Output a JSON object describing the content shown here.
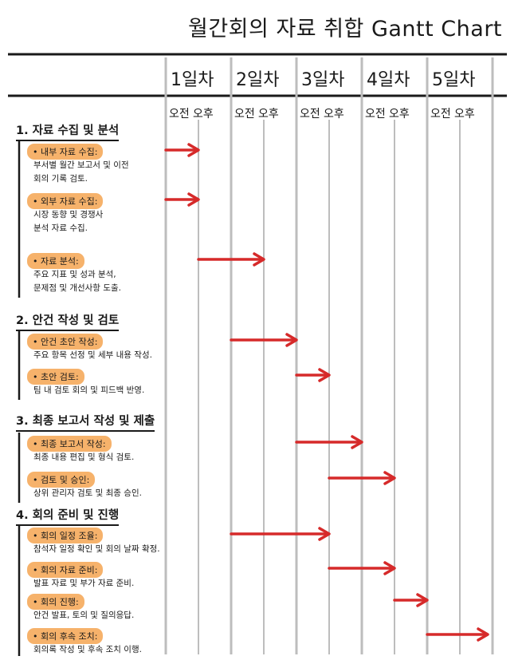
{
  "title": "월간회의 자료 취합 Gantt Chart",
  "days": [
    "1일차",
    "2일차",
    "3일차",
    "4일차",
    "5일차"
  ],
  "periods": [
    "오전",
    "오후"
  ],
  "colors": {
    "arrow": "#d62a2a",
    "highlight": "#f6b26b",
    "grid": "#bdbdbd",
    "ink": "#1a1a1a"
  },
  "sections": [
    {
      "title": "1. 자료 수집 및 분석",
      "tasks": [
        {
          "name": "내부 자료 수집:",
          "desc": [
            "부서별 월간 보고서 및 이전",
            "회의 기록 검토."
          ],
          "start": 0,
          "end": 1
        },
        {
          "name": "외부 자료 수집:",
          "desc": [
            "시장 동향 및 경쟁사",
            "분석 자료 수집."
          ],
          "start": 0,
          "end": 1
        },
        {
          "name": "자료 분석:",
          "desc": [
            "주요 지표 및 성과 분석,",
            "문제점 및 개선사항 도출."
          ],
          "start": 1,
          "end": 3
        }
      ]
    },
    {
      "title": "2. 안건 작성 및 검토",
      "tasks": [
        {
          "name": "안건 초안 작성:",
          "desc": [
            "주요 항목 선정 및 세부 내용 작성."
          ],
          "start": 2,
          "end": 4
        },
        {
          "name": "초안 검토:",
          "desc": [
            "팀 내 검토 회의 및 피드백 반영."
          ],
          "start": 4,
          "end": 5
        }
      ]
    },
    {
      "title": "3. 최종 보고서 작성 및 제출",
      "tasks": [
        {
          "name": "최종 보고서 작성:",
          "desc": [
            "최종 내용 편집 및 형식 검토."
          ],
          "start": 4,
          "end": 6
        },
        {
          "name": "검토 및 승인:",
          "desc": [
            "상위 관리자 검토 및 최종 승인."
          ],
          "start": 5,
          "end": 7
        }
      ]
    },
    {
      "title": "4. 회의 준비 및 진행",
      "tasks": [
        {
          "name": "회의 일정 조율:",
          "desc": [
            "참석자 일정 확인 및 회의 날짜 확정."
          ],
          "start": 2,
          "end": 5
        },
        {
          "name": "회의 자료 준비:",
          "desc": [
            "발표 자료 및 부가 자료 준비."
          ],
          "start": 5,
          "end": 7
        },
        {
          "name": "회의 진행:",
          "desc": [
            "안건 발표, 토의 및 질의응답."
          ],
          "start": 7,
          "end": 8
        },
        {
          "name": "회의 후속 조치:",
          "desc": [
            "회의록 작성 및 후속 조치 이행."
          ],
          "start": 8,
          "end": 10
        }
      ]
    }
  ]
}
